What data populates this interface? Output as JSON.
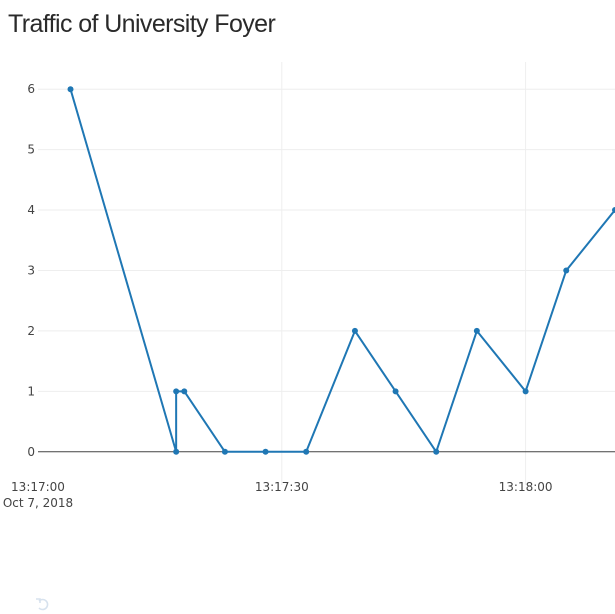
{
  "chart_data": {
    "type": "line",
    "title": "Traffic of University Foyer",
    "xlabel": "",
    "ylabel": "",
    "x_ticks": [
      "13:17:00",
      "13:17:30",
      "13:18:00"
    ],
    "x_tick_date": "Oct 7, 2018",
    "y_ticks": [
      0,
      1,
      2,
      3,
      4,
      5,
      6
    ],
    "ylim": [
      -0.55,
      6.45
    ],
    "xlim": [
      "2018-10-07 13:17:00",
      "2018-10-07 13:18:11"
    ],
    "grid": true,
    "series": [
      {
        "color": "#1f77b4",
        "x": [
          "2018-10-07 13:17:04",
          "2018-10-07 13:17:17",
          "2018-10-07 13:17:17",
          "2018-10-07 13:17:18",
          "2018-10-07 13:17:23",
          "2018-10-07 13:17:28",
          "2018-10-07 13:17:33",
          "2018-10-07 13:17:39",
          "2018-10-07 13:17:44",
          "2018-10-07 13:17:49",
          "2018-10-07 13:17:54",
          "2018-10-07 13:18:00",
          "2018-10-07 13:18:05",
          "2018-10-07 13:18:11"
        ],
        "values": [
          6,
          0,
          1,
          1,
          0,
          0,
          0,
          2,
          1,
          0,
          2,
          1,
          3,
          4
        ]
      }
    ]
  },
  "modebar": {
    "reset_icon": "reset-axes-icon"
  }
}
